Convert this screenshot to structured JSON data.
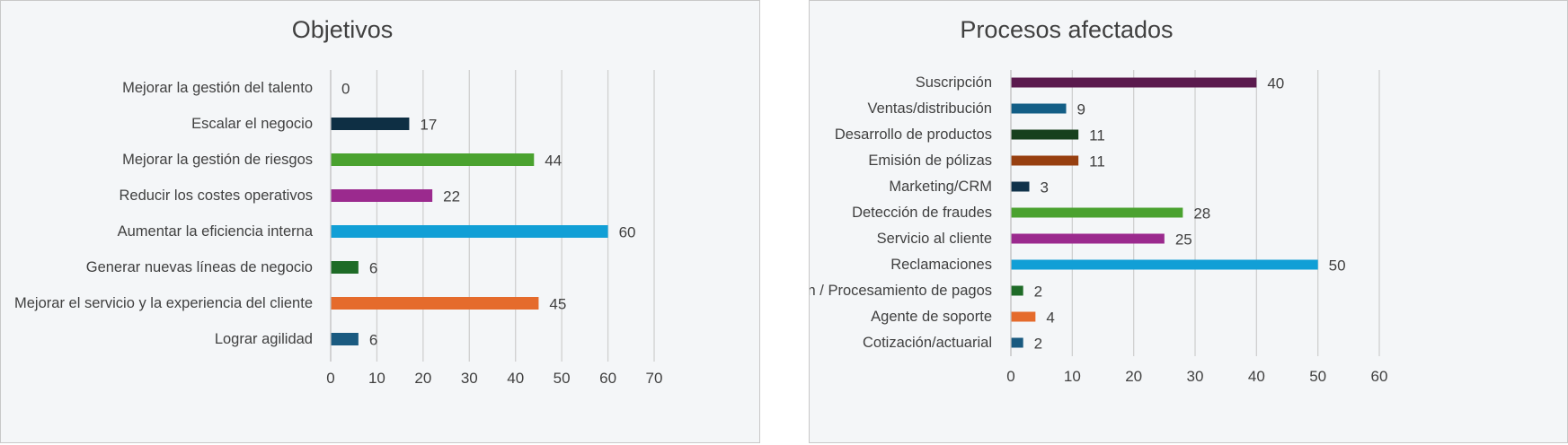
{
  "chart_data": [
    {
      "type": "bar",
      "orientation": "horizontal",
      "title": "Objetivos",
      "categories": [
        "Mejorar la gestión del talento",
        "Escalar el negocio",
        "Mejorar la gestión de riesgos",
        "Reducir los costes operativos",
        "Aumentar la eficiencia interna",
        "Generar nuevas líneas de negocio",
        "Mejorar el servicio y la experiencia del cliente",
        "Lograr agilidad"
      ],
      "values": [
        0,
        17,
        44,
        22,
        60,
        6,
        45,
        6
      ],
      "colors": [
        "#7f7f7f",
        "#0e2f44",
        "#4aa22f",
        "#9b2a8e",
        "#119fd6",
        "#1e6b27",
        "#e56b2c",
        "#1a5a80"
      ],
      "xlim": [
        0,
        70
      ],
      "xticks": [
        0,
        10,
        20,
        30,
        40,
        50,
        60,
        70
      ],
      "grid": true,
      "data_labels": true
    },
    {
      "type": "bar",
      "orientation": "horizontal",
      "title": "Procesos afectados",
      "categories": [
        "Suscripción",
        "Ventas/distribución",
        "Desarrollo de productos",
        "Emisión de pólizas",
        "Marketing/CRM",
        "Detección de fraudes",
        "Servicio al cliente",
        "Reclamaciones",
        "Facturación / Procesamiento de pagos",
        "Agente de soporte",
        "Cotización/actuarial"
      ],
      "values": [
        40,
        9,
        11,
        11,
        3,
        28,
        25,
        50,
        2,
        4,
        2
      ],
      "colors": [
        "#5b1a4e",
        "#135e86",
        "#16401d",
        "#973f10",
        "#10324a",
        "#4aa22f",
        "#9b2a8e",
        "#119fd6",
        "#1e6b27",
        "#e56b2c",
        "#1a5a80"
      ],
      "xlim": [
        0,
        60
      ],
      "xticks": [
        0,
        10,
        20,
        30,
        40,
        50,
        60
      ],
      "grid": true,
      "data_labels": true
    }
  ]
}
